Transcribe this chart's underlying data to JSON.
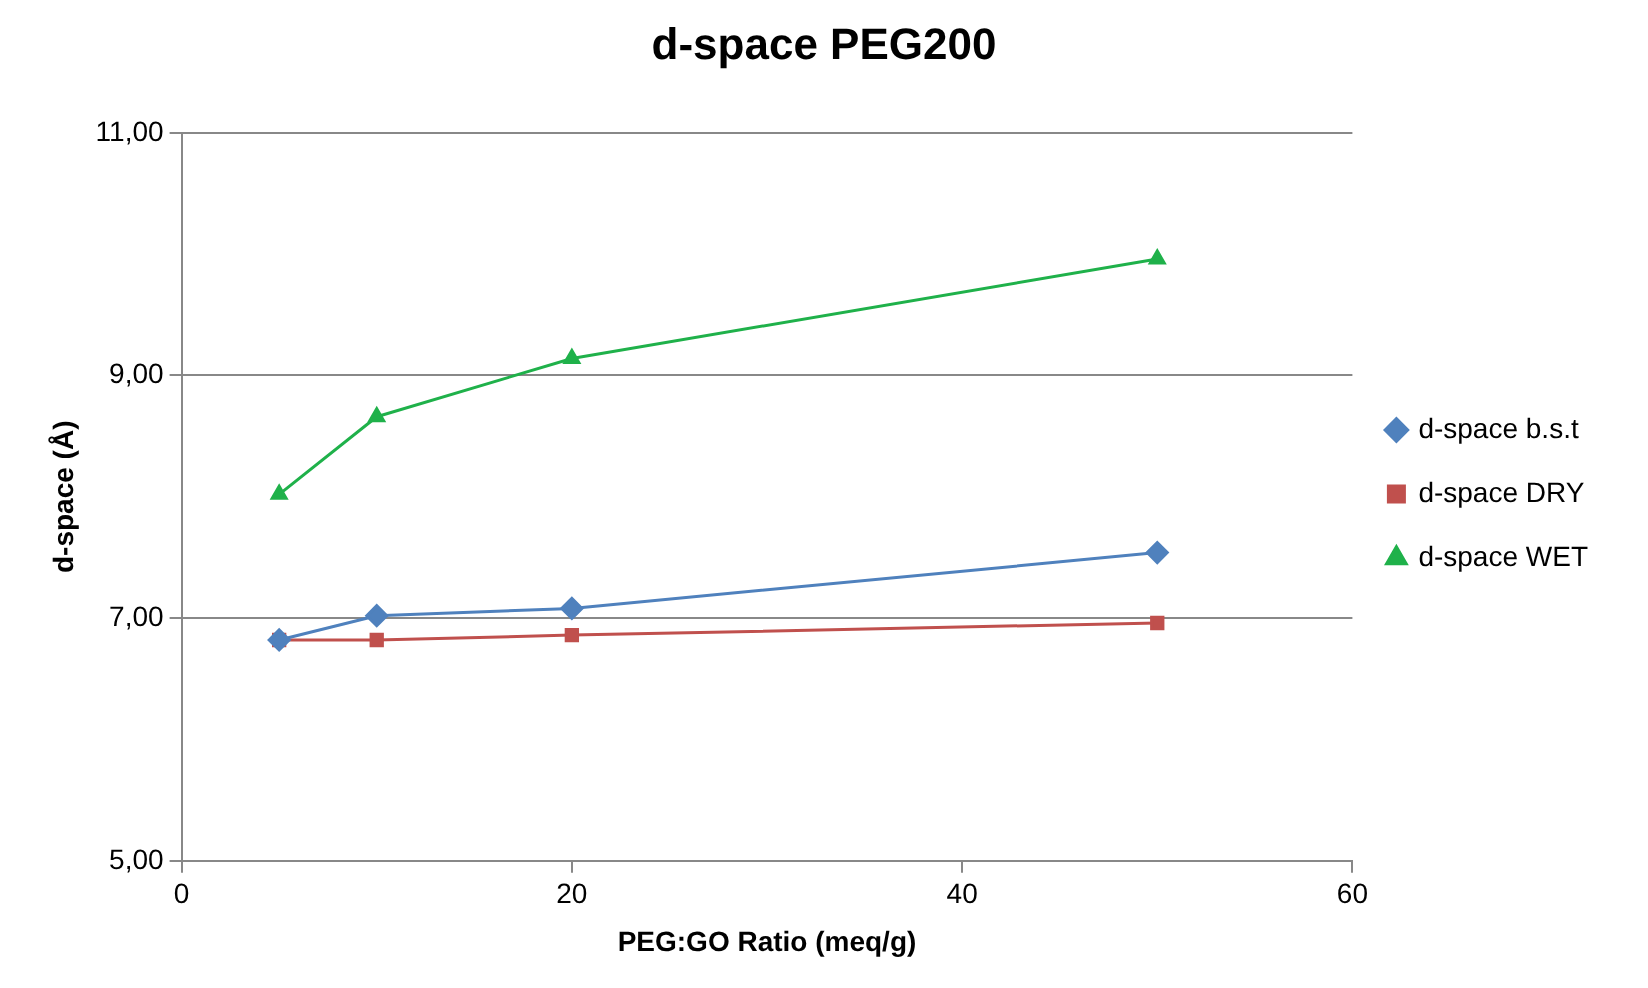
{
  "chart_data": {
    "type": "line",
    "title": "d-space PEG200",
    "xlabel": "PEG:GO Ratio (meq/g)",
    "ylabel": "d-space (Å)",
    "x": [
      5,
      10,
      20,
      50
    ],
    "series": [
      {
        "name": "d-space b.s.t",
        "color": "#4f81bd",
        "marker": "diamond",
        "values": [
          6.82,
          7.02,
          7.08,
          7.54
        ]
      },
      {
        "name": "d-space DRY",
        "color": "#c0504d",
        "marker": "square",
        "values": [
          6.82,
          6.82,
          6.86,
          6.96
        ]
      },
      {
        "name": "d-space WET",
        "color": "#1fb14a",
        "marker": "triangle",
        "values": [
          8.02,
          8.66,
          9.14,
          9.96
        ]
      }
    ],
    "xlim": [
      0,
      60
    ],
    "xticks": [
      0,
      20,
      40,
      60
    ],
    "ylim": [
      5,
      11
    ],
    "yticks": [
      {
        "value": 5,
        "label": "5,00"
      },
      {
        "value": 7,
        "label": "7,00"
      },
      {
        "value": 9,
        "label": "9,00"
      },
      {
        "value": 11,
        "label": "11,00"
      }
    ],
    "grid": "y",
    "legend": "right",
    "line_style": "solid"
  }
}
